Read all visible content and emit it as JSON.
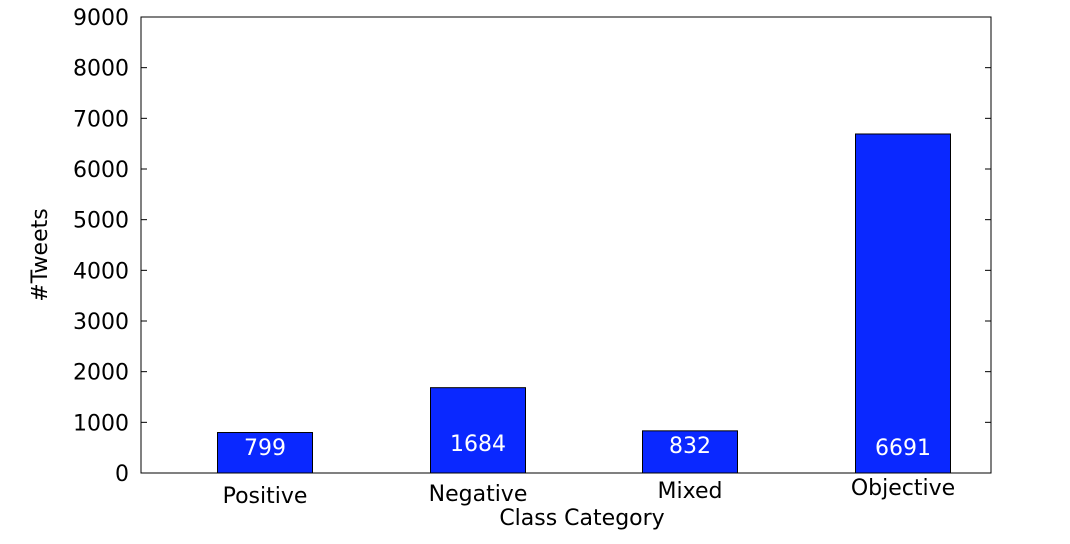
{
  "chart_data": {
    "type": "bar",
    "categories": [
      "Positive",
      "Negative",
      "Mixed",
      "Objective"
    ],
    "values": [
      799,
      1684,
      832,
      6691
    ],
    "data_labels": [
      "799",
      "1684",
      "832",
      "6691"
    ],
    "title": "",
    "xlabel": "Class Category",
    "ylabel": "#Tweets",
    "ylim": [
      0,
      9000
    ],
    "yticks": [
      0,
      1000,
      2000,
      3000,
      4000,
      5000,
      6000,
      7000,
      8000,
      9000
    ],
    "ytick_labels": [
      "0",
      "1000",
      "2000",
      "3000",
      "4000",
      "5000",
      "6000",
      "7000",
      "8000",
      "9000"
    ],
    "grid": false,
    "legend": "none",
    "bar_color": "#0a28ff",
    "bar_edge_color": "#000000",
    "data_label_color": "#ffffff"
  }
}
